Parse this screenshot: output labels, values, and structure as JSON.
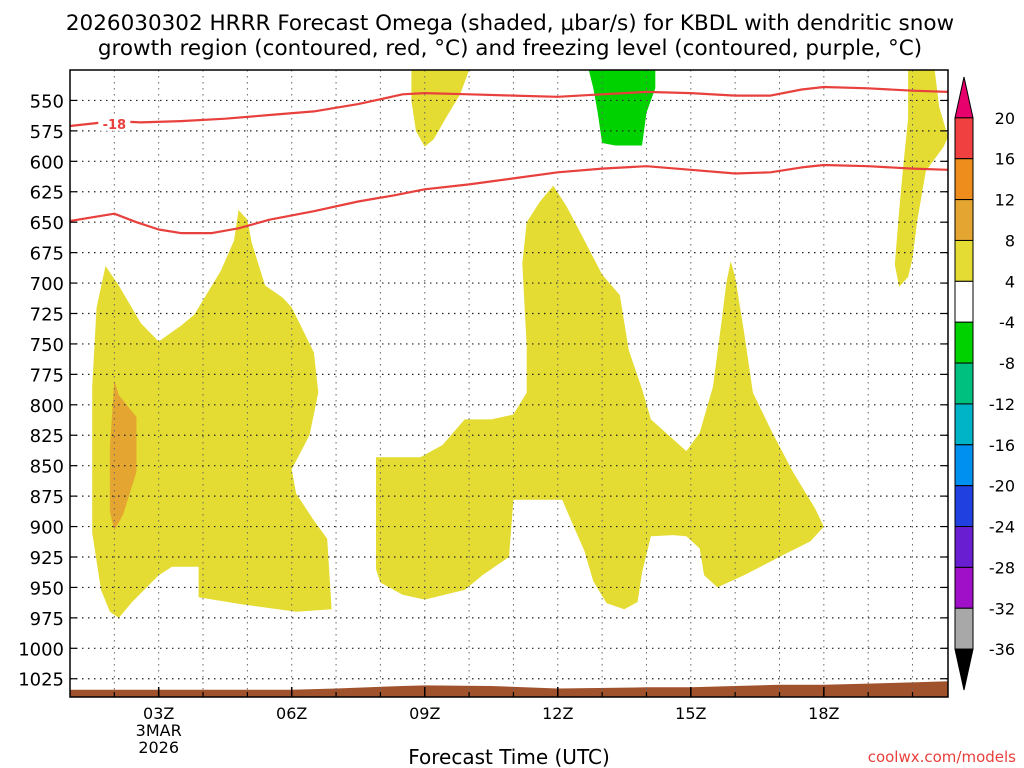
{
  "title_line1": "2026030302 HRRR Forecast Omega (shaded, μbar/s) for KBDL with dendritic snow",
  "title_line2": "growth region (contoured, red, °C) and freezing level (contoured, purple, °C)",
  "credit": "coolwx.com/models",
  "chart_data": {
    "type": "heatmap",
    "xlabel": "Forecast Time (UTC)",
    "ylabel": "",
    "x_range_hours_utc": [
      1.0,
      20.8
    ],
    "y_range_hpa": [
      525,
      1040
    ],
    "y_scale": "linear, pressure decreasing upward",
    "grid": "dotted",
    "x_ticks": [
      {
        "hour": 3,
        "label": "03Z",
        "sublabels": [
          "3MAR",
          "2026"
        ]
      },
      {
        "hour": 6,
        "label": "06Z",
        "sublabels": []
      },
      {
        "hour": 9,
        "label": "09Z",
        "sublabels": []
      },
      {
        "hour": 12,
        "label": "12Z",
        "sublabels": []
      },
      {
        "hour": 15,
        "label": "15Z",
        "sublabels": []
      },
      {
        "hour": 18,
        "label": "18Z",
        "sublabels": []
      }
    ],
    "y_ticks": [
      550,
      575,
      600,
      625,
      650,
      675,
      700,
      725,
      750,
      775,
      800,
      825,
      850,
      875,
      900,
      925,
      950,
      975,
      1000,
      1025
    ],
    "colorbar": {
      "tick_labels": [
        "20",
        "16",
        "12",
        "8",
        "4",
        "-4",
        "-8",
        "-12",
        "-16",
        "-20",
        "-24",
        "-28",
        "-32",
        "-36"
      ],
      "bins": [
        {
          "from": 20,
          "to": 24,
          "color": "#e8006c",
          "shape": "arrow-up"
        },
        {
          "from": 16,
          "to": 20,
          "color": "#f04040"
        },
        {
          "from": 12,
          "to": 16,
          "color": "#ee8c1c"
        },
        {
          "from": 8,
          "to": 12,
          "color": "#e4a630"
        },
        {
          "from": 4,
          "to": 8,
          "color": "#e4dc32"
        },
        {
          "from": -4,
          "to": 4,
          "color": "#ffffff"
        },
        {
          "from": -8,
          "to": -4,
          "color": "#00d200"
        },
        {
          "from": -12,
          "to": -8,
          "color": "#00c080"
        },
        {
          "from": -16,
          "to": -12,
          "color": "#00b4c8"
        },
        {
          "from": -20,
          "to": -16,
          "color": "#0090f0"
        },
        {
          "from": -24,
          "to": -20,
          "color": "#2040e0"
        },
        {
          "from": -28,
          "to": -24,
          "color": "#6a1ed2"
        },
        {
          "from": -32,
          "to": -28,
          "color": "#a010c8"
        },
        {
          "from": -36,
          "to": -32,
          "color": "#a8a8a8"
        },
        {
          "from": -40,
          "to": -36,
          "color": "#000000",
          "shape": "arrow-down"
        }
      ]
    },
    "shaded_regions": [
      {
        "name": "omega-4-to-8-early",
        "color": "#e4dc32",
        "points": [
          [
            1.5,
            785
          ],
          [
            1.6,
            720
          ],
          [
            1.8,
            686
          ],
          [
            2.1,
            702
          ],
          [
            2.6,
            733
          ],
          [
            3.0,
            748
          ],
          [
            3.5,
            735
          ],
          [
            3.8,
            726
          ],
          [
            4.4,
            690
          ],
          [
            4.7,
            665
          ],
          [
            4.8,
            640
          ],
          [
            5.0,
            648
          ],
          [
            5.1,
            667
          ],
          [
            5.4,
            702
          ],
          [
            5.8,
            712
          ],
          [
            6.0,
            720
          ],
          [
            6.5,
            757
          ],
          [
            6.6,
            790
          ],
          [
            6.4,
            825
          ],
          [
            6.0,
            853
          ],
          [
            6.1,
            873
          ],
          [
            6.5,
            895
          ],
          [
            6.8,
            910
          ],
          [
            6.9,
            968
          ],
          [
            6.1,
            970
          ],
          [
            4.9,
            964
          ],
          [
            3.9,
            958
          ],
          [
            3.9,
            933
          ],
          [
            3.3,
            933
          ],
          [
            3.0,
            940
          ],
          [
            2.4,
            962
          ],
          [
            2.1,
            975
          ],
          [
            1.9,
            970
          ],
          [
            1.7,
            952
          ],
          [
            1.5,
            905
          ],
          [
            1.5,
            850
          ]
        ]
      },
      {
        "name": "omega-8-to-12-core",
        "color": "#e4a630",
        "points": [
          [
            2.0,
            780
          ],
          [
            2.1,
            792
          ],
          [
            2.5,
            810
          ],
          [
            2.5,
            855
          ],
          [
            2.2,
            890
          ],
          [
            2.0,
            903
          ],
          [
            1.9,
            888
          ],
          [
            1.9,
            835
          ]
        ]
      },
      {
        "name": "omega-4-to-8-mid",
        "color": "#e4dc32",
        "points": [
          [
            7.9,
            843
          ],
          [
            8.9,
            843
          ],
          [
            9.4,
            833
          ],
          [
            9.9,
            812
          ],
          [
            10.5,
            812
          ],
          [
            11.0,
            808
          ],
          [
            11.3,
            790
          ],
          [
            11.3,
            752
          ],
          [
            11.2,
            684
          ],
          [
            11.3,
            650
          ],
          [
            11.6,
            633
          ],
          [
            11.9,
            620
          ],
          [
            12.2,
            637
          ],
          [
            12.6,
            665
          ],
          [
            13.0,
            693
          ],
          [
            13.4,
            710
          ],
          [
            13.6,
            755
          ],
          [
            13.9,
            787
          ],
          [
            14.1,
            812
          ],
          [
            14.5,
            825
          ],
          [
            14.9,
            838
          ],
          [
            15.2,
            823
          ],
          [
            15.5,
            785
          ],
          [
            15.7,
            730
          ],
          [
            15.8,
            700
          ],
          [
            15.9,
            682
          ],
          [
            16.0,
            695
          ],
          [
            16.2,
            740
          ],
          [
            16.4,
            790
          ],
          [
            16.8,
            820
          ],
          [
            17.3,
            855
          ],
          [
            17.8,
            885
          ],
          [
            18.0,
            900
          ],
          [
            17.7,
            912
          ],
          [
            17.1,
            923
          ],
          [
            16.2,
            940
          ],
          [
            15.6,
            950
          ],
          [
            15.3,
            940
          ],
          [
            15.2,
            918
          ],
          [
            14.9,
            908
          ],
          [
            14.6,
            907
          ],
          [
            14.1,
            908
          ],
          [
            13.9,
            938
          ],
          [
            13.8,
            962
          ],
          [
            13.5,
            968
          ],
          [
            13.1,
            963
          ],
          [
            12.8,
            945
          ],
          [
            12.6,
            920
          ],
          [
            12.3,
            895
          ],
          [
            12.1,
            878
          ],
          [
            11.6,
            878
          ],
          [
            11.0,
            878
          ],
          [
            10.9,
            925
          ],
          [
            10.3,
            940
          ],
          [
            9.9,
            952
          ],
          [
            9.0,
            960
          ],
          [
            8.5,
            956
          ],
          [
            8.0,
            946
          ],
          [
            7.9,
            935
          ]
        ]
      },
      {
        "name": "omega-4-to-8-upper-09z",
        "color": "#e4dc32",
        "points": [
          [
            8.7,
            525
          ],
          [
            10.0,
            525
          ],
          [
            9.8,
            545
          ],
          [
            9.5,
            563
          ],
          [
            9.2,
            582
          ],
          [
            9.0,
            588
          ],
          [
            8.8,
            575
          ],
          [
            8.7,
            550
          ]
        ]
      },
      {
        "name": "omega-4-to-8-upper-right",
        "color": "#e4dc32",
        "points": [
          [
            19.9,
            525
          ],
          [
            20.5,
            525
          ],
          [
            20.6,
            555
          ],
          [
            20.8,
            580
          ],
          [
            20.7,
            588
          ],
          [
            20.3,
            608
          ],
          [
            20.1,
            650
          ],
          [
            20.0,
            680
          ],
          [
            19.9,
            695
          ],
          [
            19.7,
            703
          ],
          [
            19.6,
            685
          ],
          [
            19.7,
            640
          ],
          [
            19.8,
            600
          ],
          [
            19.9,
            565
          ]
        ]
      },
      {
        "name": "omega-neg-8-to-neg-4",
        "color": "#00d200",
        "points": [
          [
            12.7,
            525
          ],
          [
            14.2,
            525
          ],
          [
            14.2,
            540
          ],
          [
            14.0,
            560
          ],
          [
            13.9,
            587
          ],
          [
            13.3,
            587
          ],
          [
            13.0,
            585
          ],
          [
            12.9,
            560
          ],
          [
            12.8,
            540
          ]
        ]
      },
      {
        "name": "terrain",
        "color": "#a0522d",
        "points": [
          [
            1.0,
            1040
          ],
          [
            1.0,
            1034
          ],
          [
            6.0,
            1034
          ],
          [
            7.0,
            1033
          ],
          [
            8.5,
            1031
          ],
          [
            9.0,
            1030.5
          ],
          [
            10.5,
            1031
          ],
          [
            12.0,
            1033
          ],
          [
            14.0,
            1032
          ],
          [
            15.0,
            1032
          ],
          [
            16.0,
            1031
          ],
          [
            17.0,
            1030
          ],
          [
            18.0,
            1030
          ],
          [
            19.0,
            1029
          ],
          [
            20.0,
            1028
          ],
          [
            20.8,
            1027
          ],
          [
            20.8,
            1040
          ]
        ]
      }
    ],
    "contours": [
      {
        "name": "dgz-upper",
        "color": "#e8403c",
        "label": "-18",
        "label_at": [
          2.0,
          570
        ],
        "points": [
          [
            1.0,
            571
          ],
          [
            2.0,
            567
          ],
          [
            2.6,
            568
          ],
          [
            3.5,
            567
          ],
          [
            4.5,
            565
          ],
          [
            5.5,
            562
          ],
          [
            6.5,
            559
          ],
          [
            7.5,
            553
          ],
          [
            8.5,
            545
          ],
          [
            9.0,
            544
          ],
          [
            10.0,
            545
          ],
          [
            11.0,
            546
          ],
          [
            12.0,
            547
          ],
          [
            13.0,
            545
          ],
          [
            14.0,
            543
          ],
          [
            15.0,
            544
          ],
          [
            16.0,
            546
          ],
          [
            16.8,
            546
          ],
          [
            17.5,
            541
          ],
          [
            18.0,
            539
          ],
          [
            19.0,
            540
          ],
          [
            20.0,
            542
          ],
          [
            20.8,
            543
          ]
        ]
      },
      {
        "name": "dgz-lower",
        "color": "#e8403c",
        "label": "",
        "points": [
          [
            1.0,
            649
          ],
          [
            1.5,
            646
          ],
          [
            2.0,
            643
          ],
          [
            2.5,
            650
          ],
          [
            3.0,
            656
          ],
          [
            3.5,
            659
          ],
          [
            4.2,
            659
          ],
          [
            4.8,
            655
          ],
          [
            5.5,
            648
          ],
          [
            6.5,
            641
          ],
          [
            7.5,
            633
          ],
          [
            8.3,
            628
          ],
          [
            9.0,
            623
          ],
          [
            10.0,
            619
          ],
          [
            11.0,
            614
          ],
          [
            12.0,
            609
          ],
          [
            13.0,
            606
          ],
          [
            14.0,
            604
          ],
          [
            15.0,
            607
          ],
          [
            16.0,
            610
          ],
          [
            16.8,
            609
          ],
          [
            17.5,
            605
          ],
          [
            18.0,
            603
          ],
          [
            19.0,
            604
          ],
          [
            20.0,
            606
          ],
          [
            20.8,
            607
          ]
        ]
      }
    ]
  }
}
